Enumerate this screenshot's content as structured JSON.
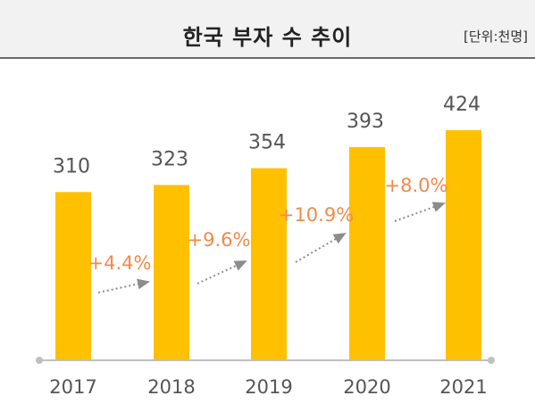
{
  "header": {
    "title": "한국 부자 수 추이",
    "unit": "[단위:천명]"
  },
  "colors": {
    "bar": "#FFC000",
    "growth_text": "#F08A4B",
    "arrow": "#8c8c8c",
    "axis": "#bfbfbf"
  },
  "chart_data": {
    "type": "bar",
    "title": "한국 부자 수 추이",
    "unit": "[단위:천명]",
    "categories": [
      "2017",
      "2018",
      "2019",
      "2020",
      "2021"
    ],
    "values": [
      310,
      323,
      354,
      393,
      424
    ],
    "growth_labels": [
      "+4.4%",
      "+9.6%",
      "+10.9%",
      "+8.0%"
    ],
    "ylim": [
      0,
      450
    ],
    "grid": false,
    "legend": "none"
  }
}
